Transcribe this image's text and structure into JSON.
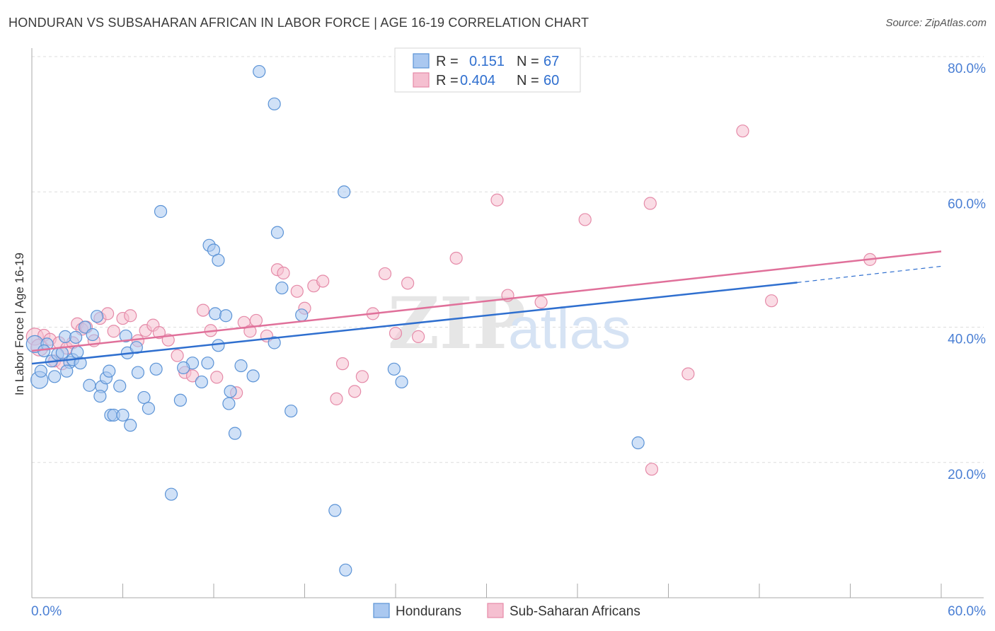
{
  "title": "HONDURAN VS SUBSAHARAN AFRICAN IN LABOR FORCE | AGE 16-19 CORRELATION CHART",
  "source": "Source: ZipAtlas.com",
  "watermark": {
    "zip": "ZIP",
    "atlas": "atlas"
  },
  "colors": {
    "blue_fill": "#aac8f0",
    "blue_stroke": "#5b93d6",
    "blue_line": "#2f6fcf",
    "pink_fill": "#f5bfd0",
    "pink_stroke": "#e58aa8",
    "pink_line": "#e0709a",
    "tick_text": "#4a7fd4",
    "grid": "#dddddd"
  },
  "legend": {
    "r_label": "R =",
    "n_label": "N =",
    "rows": [
      {
        "r": "0.151",
        "n": "67"
      },
      {
        "r": "0.404",
        "n": "60"
      }
    ]
  },
  "chart_data": {
    "type": "scatter",
    "xlabel": "",
    "ylabel": "In Labor Force | Age 16-19",
    "xlim": [
      0,
      60
    ],
    "ylim": [
      0,
      80
    ],
    "x_tick_labels": [
      "0.0%",
      "60.0%"
    ],
    "y_ticks": [
      20,
      40,
      60,
      80
    ],
    "y_tick_labels": [
      "20.0%",
      "40.0%",
      "60.0%",
      "80.0%"
    ],
    "grid": true,
    "legend_position": "top-center",
    "series": [
      {
        "name": "Hondurans",
        "trend": {
          "x0": 0,
          "y0": 34.6,
          "x1": 50.5,
          "y1": 46.6,
          "dash_to_x": 60,
          "dash_to_y": 49.0
        },
        "points": [
          [
            0.2,
            37.5
          ],
          [
            0.5,
            32.2
          ],
          [
            0.6,
            33.5
          ],
          [
            1.0,
            37.5
          ],
          [
            1.3,
            35.0
          ],
          [
            1.5,
            32.7
          ],
          [
            1.7,
            36.0
          ],
          [
            2.0,
            36.2
          ],
          [
            2.2,
            38.6
          ],
          [
            2.5,
            34.8
          ],
          [
            2.7,
            35.2
          ],
          [
            2.9,
            38.5
          ],
          [
            3.0,
            36.3
          ],
          [
            3.2,
            34.7
          ],
          [
            3.5,
            40.0
          ],
          [
            3.8,
            31.4
          ],
          [
            4.0,
            38.9
          ],
          [
            4.3,
            41.6
          ],
          [
            4.6,
            31.2
          ],
          [
            4.9,
            32.5
          ],
          [
            5.1,
            33.5
          ],
          [
            5.2,
            27.0
          ],
          [
            5.4,
            27.0
          ],
          [
            5.8,
            31.3
          ],
          [
            6.0,
            27.0
          ],
          [
            6.2,
            38.7
          ],
          [
            6.3,
            36.2
          ],
          [
            6.5,
            25.5
          ],
          [
            6.9,
            37.0
          ],
          [
            7.0,
            33.3
          ],
          [
            7.4,
            29.6
          ],
          [
            7.7,
            28.0
          ],
          [
            8.2,
            33.8
          ],
          [
            9.2,
            15.3
          ],
          [
            9.8,
            29.2
          ],
          [
            10.6,
            34.7
          ],
          [
            11.2,
            31.9
          ],
          [
            11.6,
            34.7
          ],
          [
            12.1,
            42.0
          ],
          [
            12.3,
            37.3
          ],
          [
            12.8,
            41.7
          ],
          [
            13.1,
            30.5
          ],
          [
            13.4,
            24.3
          ],
          [
            13.8,
            34.3
          ],
          [
            14.6,
            32.8
          ],
          [
            16.0,
            37.7
          ],
          [
            16.5,
            45.8
          ],
          [
            17.1,
            27.6
          ],
          [
            17.8,
            41.8
          ],
          [
            20.0,
            12.9
          ],
          [
            20.7,
            4.1
          ],
          [
            23.9,
            33.8
          ],
          [
            24.4,
            31.9
          ],
          [
            8.5,
            57.1
          ],
          [
            11.7,
            52.1
          ],
          [
            12.0,
            51.4
          ],
          [
            12.3,
            49.9
          ],
          [
            16.2,
            54.0
          ],
          [
            20.6,
            60.0
          ],
          [
            15.0,
            77.8
          ],
          [
            16.0,
            73.0
          ],
          [
            40.0,
            22.9
          ],
          [
            0.8,
            36.5
          ],
          [
            4.5,
            29.8
          ],
          [
            2.3,
            33.5
          ],
          [
            10.0,
            34.0
          ],
          [
            13.0,
            28.7
          ]
        ]
      },
      {
        "name": "Sub-Saharan Africans",
        "trend": {
          "x0": 0,
          "y0": 36.5,
          "x1": 60,
          "y1": 51.2
        },
        "points": [
          [
            0.2,
            38.6
          ],
          [
            0.5,
            37.0
          ],
          [
            0.8,
            38.8
          ],
          [
            1.2,
            38.2
          ],
          [
            1.5,
            35.0
          ],
          [
            1.8,
            37.7
          ],
          [
            2.0,
            34.6
          ],
          [
            2.3,
            36.9
          ],
          [
            2.7,
            37.7
          ],
          [
            3.0,
            40.5
          ],
          [
            3.3,
            39.7
          ],
          [
            3.6,
            40.0
          ],
          [
            4.1,
            38.0
          ],
          [
            4.5,
            41.3
          ],
          [
            5.0,
            42.0
          ],
          [
            5.4,
            39.4
          ],
          [
            6.0,
            41.3
          ],
          [
            6.5,
            41.7
          ],
          [
            7.0,
            38.0
          ],
          [
            7.5,
            39.5
          ],
          [
            8.0,
            40.3
          ],
          [
            8.4,
            39.2
          ],
          [
            9.0,
            38.1
          ],
          [
            9.6,
            35.8
          ],
          [
            10.1,
            33.3
          ],
          [
            10.6,
            32.8
          ],
          [
            11.3,
            42.5
          ],
          [
            11.8,
            39.5
          ],
          [
            12.2,
            32.6
          ],
          [
            13.5,
            30.3
          ],
          [
            14.0,
            40.7
          ],
          [
            14.4,
            39.4
          ],
          [
            14.8,
            41.0
          ],
          [
            15.5,
            38.7
          ],
          [
            16.2,
            48.5
          ],
          [
            16.6,
            48.0
          ],
          [
            17.5,
            45.3
          ],
          [
            18.0,
            42.8
          ],
          [
            18.6,
            46.1
          ],
          [
            19.2,
            46.8
          ],
          [
            20.1,
            29.4
          ],
          [
            20.5,
            34.6
          ],
          [
            21.3,
            30.5
          ],
          [
            21.8,
            32.7
          ],
          [
            22.5,
            42.0
          ],
          [
            23.3,
            47.9
          ],
          [
            24.0,
            39.1
          ],
          [
            24.8,
            46.5
          ],
          [
            25.5,
            38.6
          ],
          [
            28.0,
            50.2
          ],
          [
            30.7,
            58.8
          ],
          [
            31.4,
            44.7
          ],
          [
            33.6,
            43.7
          ],
          [
            36.5,
            55.9
          ],
          [
            40.8,
            58.3
          ],
          [
            40.9,
            19.0
          ],
          [
            43.3,
            33.1
          ],
          [
            46.9,
            69.0
          ],
          [
            48.8,
            43.9
          ],
          [
            55.3,
            50.0
          ]
        ]
      }
    ]
  }
}
